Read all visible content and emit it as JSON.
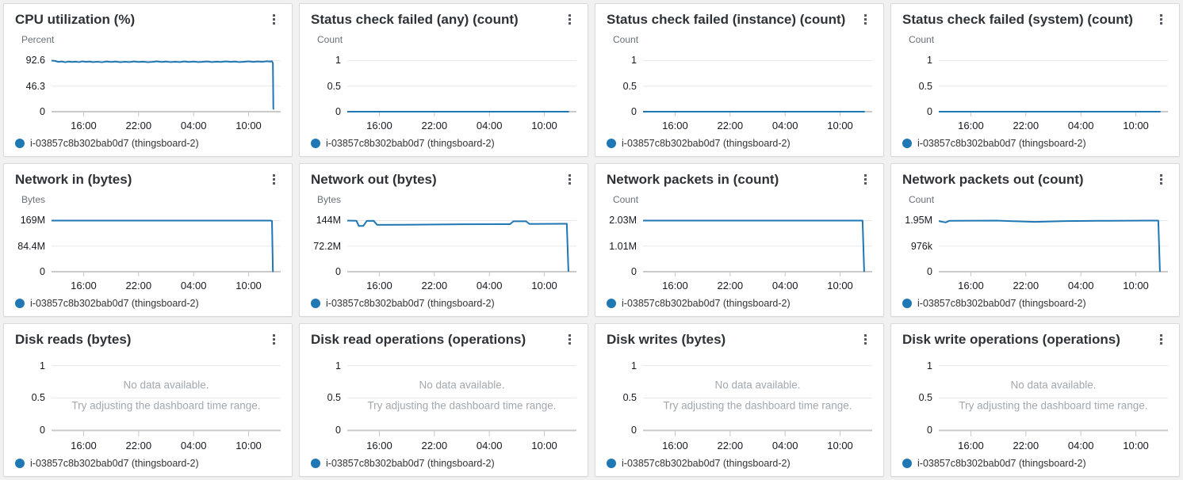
{
  "colors": {
    "line": "#1f77b4",
    "grid": "#e8e8e8",
    "axis": "#c9c9c9",
    "tick": "#c9c9c9"
  },
  "legend_label": "i-03857c8b302bab0d7 (thingsboard-2)",
  "x_ticks": [
    "16:00",
    "22:00",
    "04:00",
    "10:00"
  ],
  "x_tick_positions_pct": [
    14,
    38,
    62,
    86
  ],
  "no_data": {
    "line1": "No data available.",
    "line2": "Try adjusting the dashboard time range."
  },
  "chart_data": [
    {
      "type": "line",
      "title": "CPU utilization (%)",
      "ylabel": "Percent",
      "y_ticks": [
        "92.6",
        "46.3",
        "0"
      ],
      "ymax": 92.6,
      "xlim": [
        "13:00",
        "14:00 (+1d)"
      ],
      "no_data": false,
      "series": [
        {
          "name": "i-03857c8b302bab0d7 (thingsboard-2)",
          "color": "#1f77b4",
          "points": [
            [
              0,
              92.6
            ],
            [
              0.015,
              92.0
            ],
            [
              0.03,
              90.2
            ],
            [
              0.045,
              91.0
            ],
            [
              0.06,
              89.6
            ],
            [
              0.075,
              90.8
            ],
            [
              0.09,
              90.0
            ],
            [
              0.105,
              90.6
            ],
            [
              0.12,
              89.8
            ],
            [
              0.135,
              91.2
            ],
            [
              0.15,
              90.2
            ],
            [
              0.165,
              90.8
            ],
            [
              0.18,
              89.9
            ],
            [
              0.2,
              90.5
            ],
            [
              0.22,
              89.6
            ],
            [
              0.24,
              90.9
            ],
            [
              0.26,
              90.0
            ],
            [
              0.28,
              90.7
            ],
            [
              0.3,
              89.7
            ],
            [
              0.32,
              90.4
            ],
            [
              0.34,
              89.9
            ],
            [
              0.36,
              91.0
            ],
            [
              0.38,
              90.1
            ],
            [
              0.4,
              90.6
            ],
            [
              0.42,
              89.7
            ],
            [
              0.44,
              90.3
            ],
            [
              0.46,
              91.1
            ],
            [
              0.48,
              90.0
            ],
            [
              0.5,
              90.8
            ],
            [
              0.52,
              89.8
            ],
            [
              0.54,
              90.5
            ],
            [
              0.56,
              89.9
            ],
            [
              0.58,
              91.0
            ],
            [
              0.6,
              90.0
            ],
            [
              0.62,
              90.7
            ],
            [
              0.64,
              89.8
            ],
            [
              0.66,
              90.4
            ],
            [
              0.68,
              91.0
            ],
            [
              0.7,
              89.9
            ],
            [
              0.72,
              90.6
            ],
            [
              0.74,
              90.0
            ],
            [
              0.76,
              91.1
            ],
            [
              0.78,
              90.2
            ],
            [
              0.8,
              90.8
            ],
            [
              0.82,
              89.8
            ],
            [
              0.84,
              90.5
            ],
            [
              0.86,
              91.2
            ],
            [
              0.88,
              90.3
            ],
            [
              0.9,
              91.0
            ],
            [
              0.92,
              90.4
            ],
            [
              0.94,
              91.3
            ],
            [
              0.955,
              90.8
            ],
            [
              0.962,
              91.5
            ],
            [
              0.966,
              88.0
            ],
            [
              0.968,
              5.0
            ]
          ]
        }
      ]
    },
    {
      "type": "line",
      "title": "Status check failed (any) (count)",
      "ylabel": "Count",
      "y_ticks": [
        "1",
        "0.5",
        "0"
      ],
      "ymax": 1,
      "no_data": false,
      "series": [
        {
          "name": "i-03857c8b302bab0d7 (thingsboard-2)",
          "color": "#1f77b4",
          "points": [
            [
              0,
              0
            ],
            [
              0.965,
              0
            ]
          ]
        }
      ]
    },
    {
      "type": "line",
      "title": "Status check failed (instance) (count)",
      "ylabel": "Count",
      "y_ticks": [
        "1",
        "0.5",
        "0"
      ],
      "ymax": 1,
      "no_data": false,
      "series": [
        {
          "name": "i-03857c8b302bab0d7 (thingsboard-2)",
          "color": "#1f77b4",
          "points": [
            [
              0,
              0
            ],
            [
              0.965,
              0
            ]
          ]
        }
      ]
    },
    {
      "type": "line",
      "title": "Status check failed (system) (count)",
      "ylabel": "Count",
      "y_ticks": [
        "1",
        "0.5",
        "0"
      ],
      "ymax": 1,
      "no_data": false,
      "series": [
        {
          "name": "i-03857c8b302bab0d7 (thingsboard-2)",
          "color": "#1f77b4",
          "points": [
            [
              0,
              0
            ],
            [
              0.965,
              0
            ]
          ]
        }
      ]
    },
    {
      "type": "line",
      "title": "Network in (bytes)",
      "ylabel": "Bytes",
      "y_ticks": [
        "169M",
        "84.4M",
        "0"
      ],
      "ymax": 169,
      "no_data": false,
      "series": [
        {
          "name": "i-03857c8b302bab0d7 (thingsboard-2)",
          "color": "#1f77b4",
          "points": [
            [
              0,
              169
            ],
            [
              0.5,
              169
            ],
            [
              0.955,
              169
            ],
            [
              0.962,
              168
            ],
            [
              0.966,
              1
            ]
          ]
        }
      ]
    },
    {
      "type": "line",
      "title": "Network out (bytes)",
      "ylabel": "Bytes",
      "y_ticks": [
        "144M",
        "72.2M",
        "0"
      ],
      "ymax": 144,
      "no_data": false,
      "series": [
        {
          "name": "i-03857c8b302bab0d7 (thingsboard-2)",
          "color": "#1f77b4",
          "points": [
            [
              0,
              144
            ],
            [
              0.04,
              143.5
            ],
            [
              0.05,
              129
            ],
            [
              0.07,
              129
            ],
            [
              0.085,
              143
            ],
            [
              0.115,
              143.5
            ],
            [
              0.13,
              132
            ],
            [
              0.3,
              132.5
            ],
            [
              0.5,
              133.5
            ],
            [
              0.71,
              134
            ],
            [
              0.725,
              142
            ],
            [
              0.78,
              142
            ],
            [
              0.795,
              134.5
            ],
            [
              0.95,
              135
            ],
            [
              0.958,
              135
            ],
            [
              0.965,
              2
            ]
          ]
        }
      ]
    },
    {
      "type": "line",
      "title": "Network packets in (count)",
      "ylabel": "Count",
      "y_ticks": [
        "2.03M",
        "1.01M",
        "0"
      ],
      "ymax": 2.03,
      "no_data": false,
      "series": [
        {
          "name": "i-03857c8b302bab0d7 (thingsboard-2)",
          "color": "#1f77b4",
          "points": [
            [
              0,
              2.03
            ],
            [
              0.5,
              2.03
            ],
            [
              0.958,
              2.03
            ],
            [
              0.965,
              0.02
            ]
          ]
        }
      ]
    },
    {
      "type": "line",
      "title": "Network packets out (count)",
      "ylabel": "Count",
      "y_ticks": [
        "1.95M",
        "976k",
        "0"
      ],
      "ymax": 1.95,
      "no_data": false,
      "series": [
        {
          "name": "i-03857c8b302bab0d7 (thingsboard-2)",
          "color": "#1f77b4",
          "points": [
            [
              0,
              1.93
            ],
            [
              0.03,
              1.88
            ],
            [
              0.045,
              1.94
            ],
            [
              0.25,
              1.95
            ],
            [
              0.42,
              1.9
            ],
            [
              0.55,
              1.93
            ],
            [
              0.7,
              1.94
            ],
            [
              0.9,
              1.95
            ],
            [
              0.958,
              1.95
            ],
            [
              0.965,
              0.02
            ]
          ]
        }
      ]
    },
    {
      "type": "line",
      "title": "Disk reads (bytes)",
      "ylabel": "",
      "y_ticks": [
        "1",
        "0.5",
        "0"
      ],
      "ymax": 1,
      "no_data": true,
      "series": []
    },
    {
      "type": "line",
      "title": "Disk read operations (operations)",
      "ylabel": "",
      "y_ticks": [
        "1",
        "0.5",
        "0"
      ],
      "ymax": 1,
      "no_data": true,
      "series": []
    },
    {
      "type": "line",
      "title": "Disk writes (bytes)",
      "ylabel": "",
      "y_ticks": [
        "1",
        "0.5",
        "0"
      ],
      "ymax": 1,
      "no_data": true,
      "series": []
    },
    {
      "type": "line",
      "title": "Disk write operations (operations)",
      "ylabel": "",
      "y_ticks": [
        "1",
        "0.5",
        "0"
      ],
      "ymax": 1,
      "no_data": true,
      "series": []
    }
  ]
}
